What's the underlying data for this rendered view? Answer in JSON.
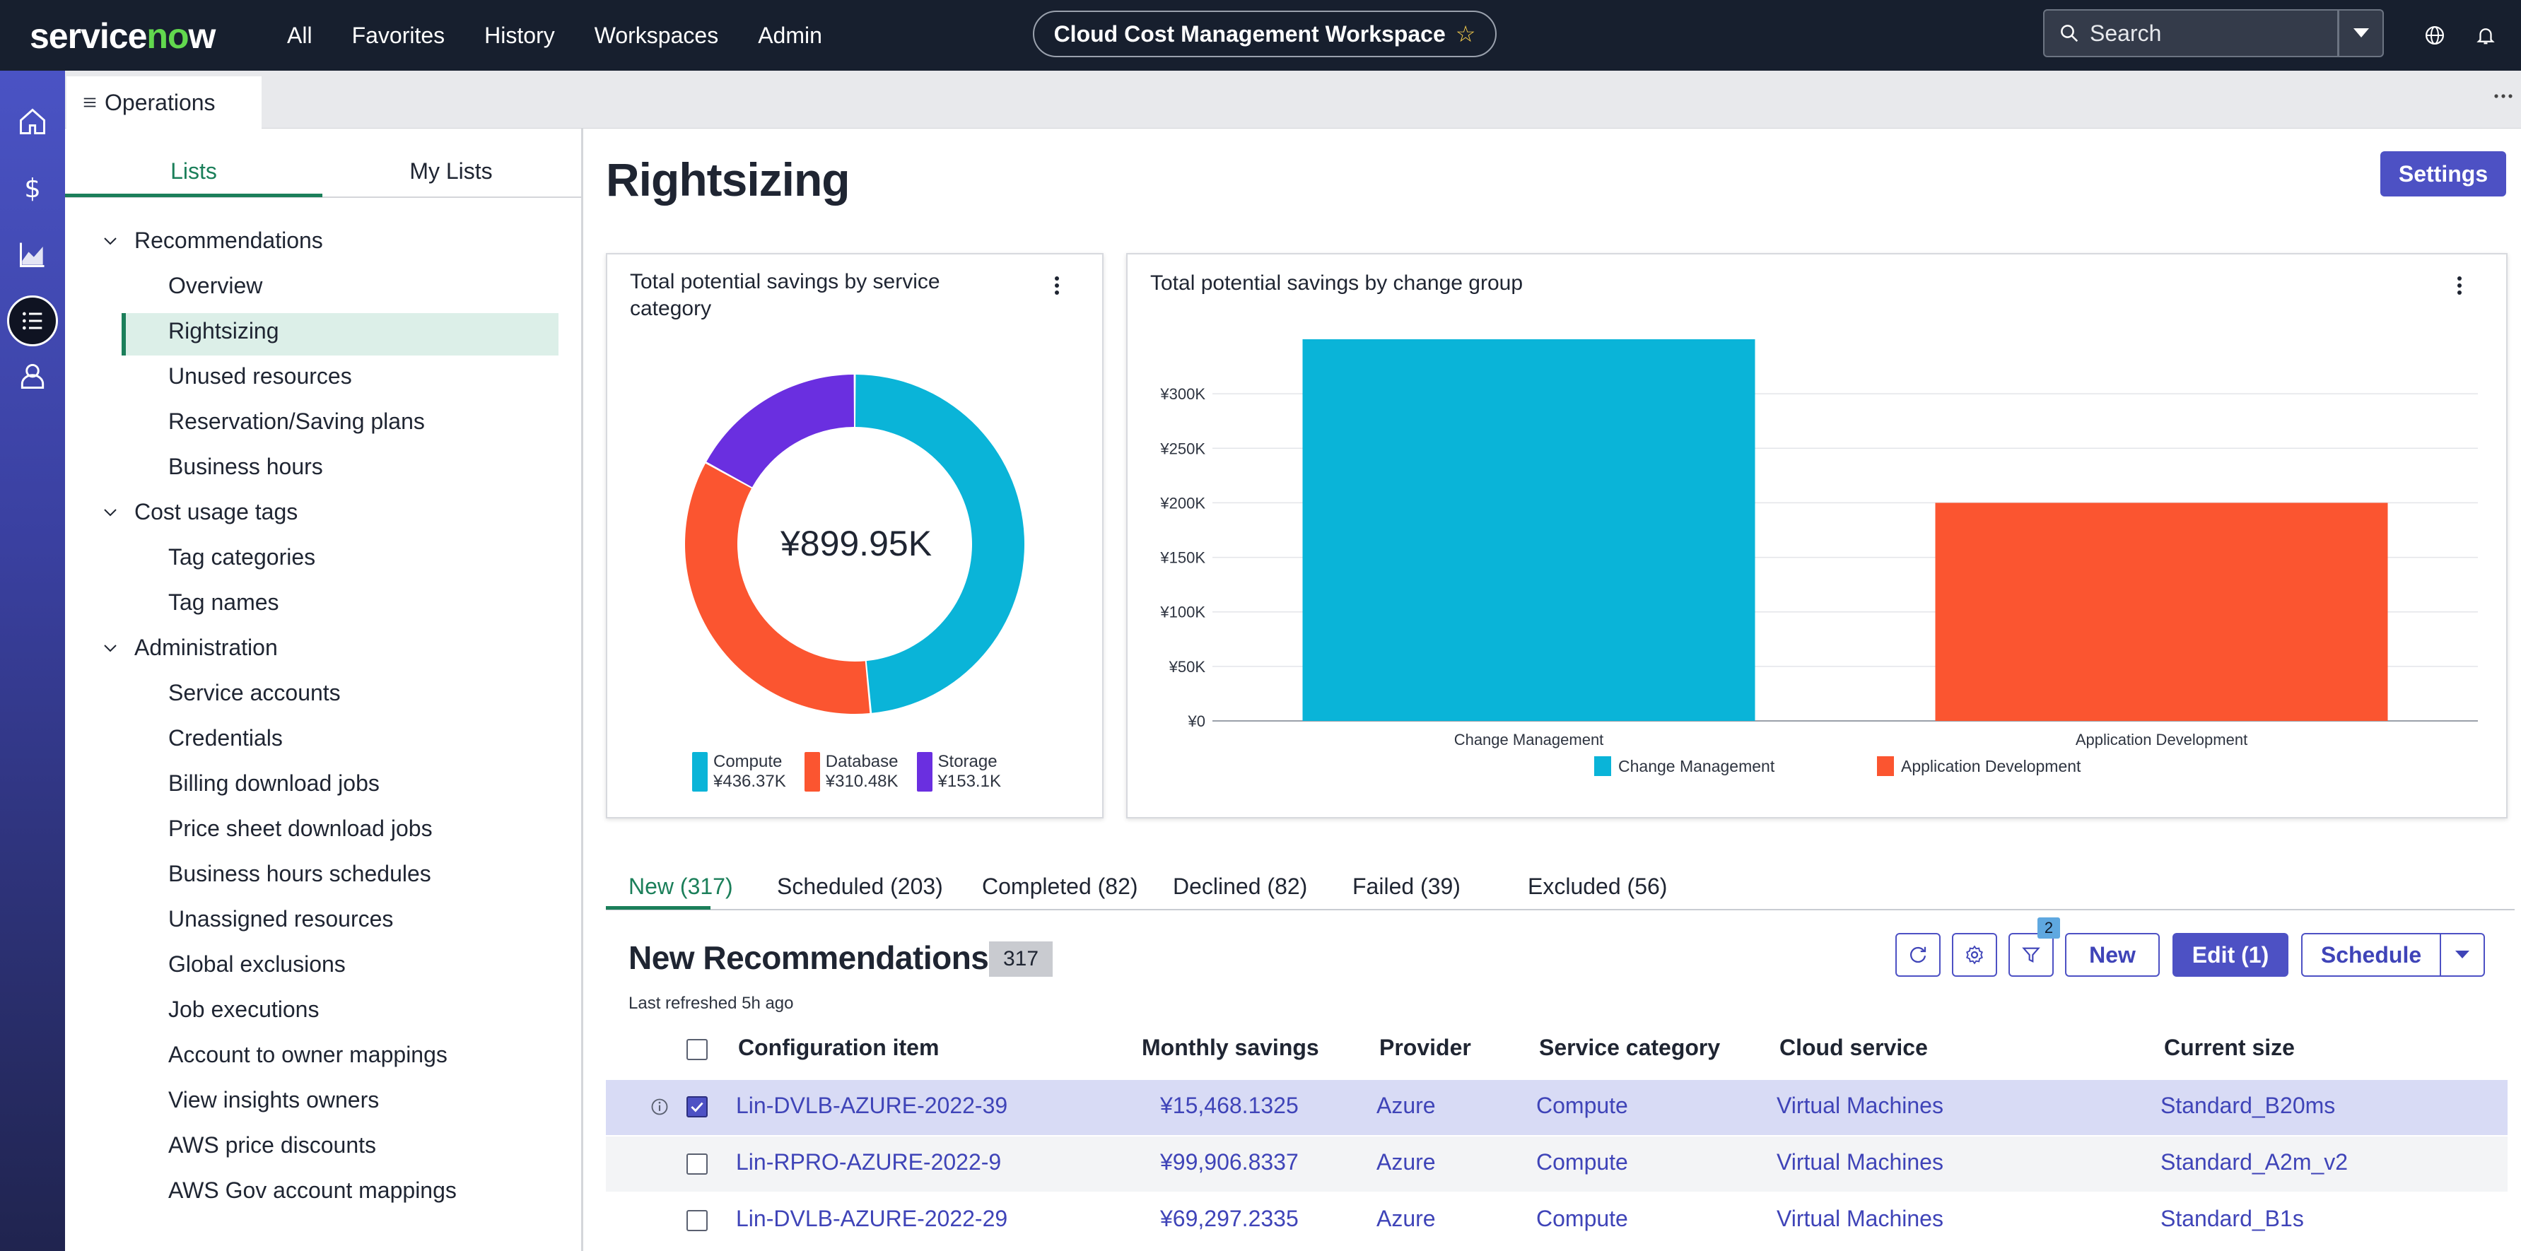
{
  "topbar": {
    "logo": "servicenow",
    "nav": [
      "All",
      "Favorites",
      "History",
      "Workspaces",
      "Admin"
    ],
    "workspace_title": "Cloud Cost Management Workspace",
    "search_placeholder": "Search"
  },
  "tabstrip": {
    "active_tab": "Operations"
  },
  "sidebar": {
    "tabs": [
      "Lists",
      "My Lists"
    ],
    "groups": [
      {
        "label": "Recommendations",
        "items": [
          "Overview",
          "Rightsizing",
          "Unused resources",
          "Reservation/Saving plans",
          "Business hours"
        ]
      },
      {
        "label": "Cost usage tags",
        "items": [
          "Tag categories",
          "Tag names"
        ]
      },
      {
        "label": "Administration",
        "items": [
          "Service accounts",
          "Credentials",
          "Billing download jobs",
          "Price sheet download jobs",
          "Business hours schedules",
          "Unassigned resources",
          "Global exclusions",
          "Job executions",
          "Account to owner mappings",
          "View insights owners",
          "AWS price discounts",
          "AWS Gov account mappings"
        ]
      }
    ],
    "selected": "Rightsizing"
  },
  "main": {
    "title": "Rightsizing",
    "settings_label": "Settings",
    "donut_card": {
      "title": "Total potential savings by service category",
      "center_value": "¥899.95K"
    },
    "bar_card": {
      "title": "Total potential savings by change group"
    },
    "record_tabs": [
      "New (317)",
      "Scheduled (203)",
      "Completed (82)",
      "Declined (82)",
      "Failed (39)",
      "Excluded (56)"
    ],
    "list": {
      "title": "New Recommendations",
      "count": "317",
      "last_refreshed": "Last refreshed 5h ago",
      "filter_count": "2",
      "new_label": "New",
      "edit_label": "Edit (1)",
      "schedule_label": "Schedule",
      "columns": [
        "Configuration item",
        "Monthly savings",
        "Provider",
        "Service category",
        "Cloud service",
        "Current size"
      ],
      "rows": [
        {
          "ci": "Lin-DVLB-AZURE-2022-39",
          "savings": "¥15,468.1325",
          "provider": "Azure",
          "category": "Compute",
          "service": "Virtual Machines",
          "size": "Standard_B20ms"
        },
        {
          "ci": "Lin-RPRO-AZURE-2022-9",
          "savings": "¥99,906.8337",
          "provider": "Azure",
          "category": "Compute",
          "service": "Virtual Machines",
          "size": "Standard_A2m_v2"
        },
        {
          "ci": "Lin-DVLB-AZURE-2022-29",
          "savings": "¥69,297.2335",
          "provider": "Azure",
          "category": "Compute",
          "service": "Virtual Machines",
          "size": "Standard_B1s"
        }
      ]
    }
  },
  "chart_data": [
    {
      "type": "pie",
      "title": "Total potential savings by service category",
      "categories": [
        "Compute",
        "Database",
        "Storage"
      ],
      "labels": [
        "¥436.37K",
        "¥310.48K",
        "¥153.1K"
      ],
      "values": [
        436.37,
        310.48,
        153.1
      ],
      "colors": [
        "#0ab4d8",
        "#fb5530",
        "#6a2fe0"
      ],
      "legend": "bottom"
    },
    {
      "type": "bar",
      "title": "Total potential savings by change group",
      "categories": [
        "Change Management",
        "Application Development"
      ],
      "values": [
        350000,
        200000
      ],
      "colors": [
        "#0ab4d8",
        "#fb5530"
      ],
      "yticks": [
        "¥0",
        "¥50K",
        "¥100K",
        "¥150K",
        "¥200K",
        "¥250K",
        "¥300K"
      ],
      "ylim": [
        0,
        350000
      ],
      "legend": "bottom",
      "grid": true
    }
  ]
}
